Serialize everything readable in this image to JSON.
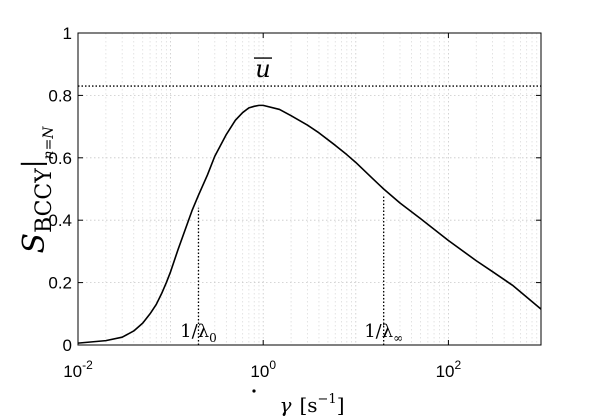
{
  "chart_data": {
    "type": "line",
    "title": "",
    "xlabel": {
      "base": "γ",
      "unit_open": "[s",
      "unit_exp": "−1",
      "unit_close": "]"
    },
    "ylabel": {
      "base": "S",
      "sub": "BCCY",
      "bar_sub": "n=N"
    },
    "xscale": "log",
    "xlim": [
      0.01,
      1000
    ],
    "ylim": [
      0,
      1
    ],
    "grid": true,
    "x_ticks": [
      {
        "base": "10",
        "exp": "-2",
        "value": 0.01
      },
      {
        "base": "10",
        "exp": "0",
        "value": 1
      },
      {
        "base": "10",
        "exp": "2",
        "value": 100
      }
    ],
    "y_ticks": [
      {
        "label": "0",
        "value": 0
      },
      {
        "label": "0.2",
        "value": 0.2
      },
      {
        "label": "0.4",
        "value": 0.4
      },
      {
        "label": "0.6",
        "value": 0.6
      },
      {
        "label": "0.8",
        "value": 0.8
      },
      {
        "label": "1",
        "value": 1
      }
    ],
    "series": [
      {
        "x": [
          0.01,
          0.02,
          0.03,
          0.04,
          0.05,
          0.06,
          0.07,
          0.08,
          0.09,
          0.1,
          0.12,
          0.15,
          0.17,
          0.2,
          0.25,
          0.3,
          0.4,
          0.5,
          0.6,
          0.7,
          0.8,
          0.9,
          1.0,
          1.5,
          2,
          3,
          4,
          6,
          8,
          10,
          15,
          20,
          30,
          50,
          100,
          200,
          300,
          500,
          1000
        ],
        "y": [
          0.006,
          0.014,
          0.025,
          0.045,
          0.07,
          0.1,
          0.13,
          0.165,
          0.2,
          0.235,
          0.305,
          0.385,
          0.43,
          0.48,
          0.545,
          0.605,
          0.675,
          0.72,
          0.745,
          0.76,
          0.765,
          0.768,
          0.768,
          0.755,
          0.735,
          0.705,
          0.68,
          0.64,
          0.61,
          0.585,
          0.535,
          0.5,
          0.455,
          0.405,
          0.335,
          0.27,
          0.235,
          0.19,
          0.115
        ],
        "color": "#000000"
      }
    ],
    "reference_line": {
      "y": 0.83,
      "label": "u",
      "style": "dotted"
    },
    "annotations": [
      {
        "x": 0.2,
        "y_top": 0.44,
        "label_base": "1/λ",
        "label_sub": "0"
      },
      {
        "x": 20,
        "y_top": 0.48,
        "label_base": "1/λ",
        "label_sub": "∞"
      }
    ]
  }
}
